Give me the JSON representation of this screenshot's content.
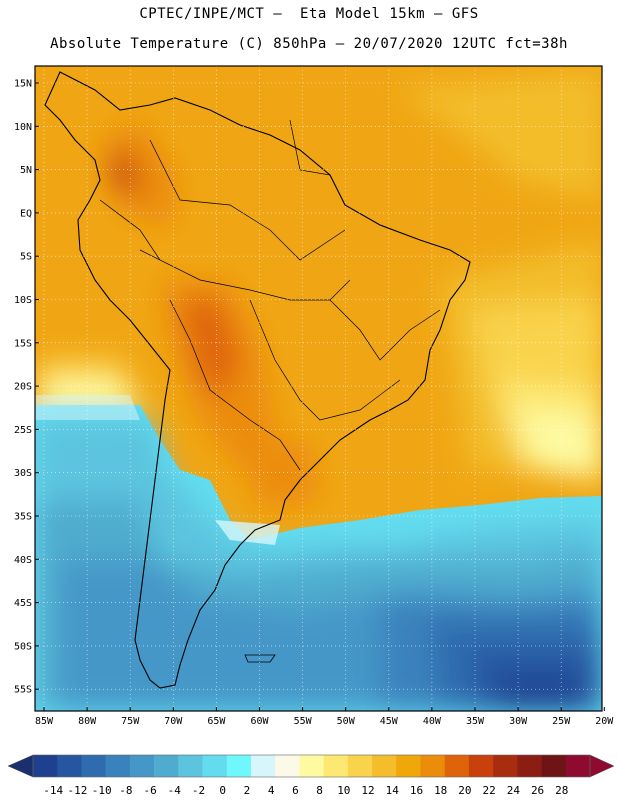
{
  "title_line1": "CPTEC/INPE/MCT –  Eta Model 15km – GFS",
  "title_line2": "Absolute Temperature (C) 850hPa – 20/07/2020 12UTC fct=38h",
  "lat_labels": [
    "15N",
    "10N",
    "5N",
    "EQ",
    "5S",
    "10S",
    "15S",
    "20S",
    "25S",
    "30S",
    "35S",
    "40S",
    "45S",
    "50S",
    "55S"
  ],
  "lon_labels": [
    "85W",
    "80W",
    "75W",
    "70W",
    "65W",
    "60W",
    "55W",
    "50W",
    "45W",
    "40W",
    "35W",
    "30W",
    "25W",
    "20W"
  ],
  "colorbar": {
    "labels": [
      "-14",
      "-12",
      "-10",
      "-8",
      "-6",
      "-4",
      "-2",
      "0",
      "2",
      "4",
      "6",
      "8",
      "10",
      "12",
      "14",
      "16",
      "18",
      "20",
      "22",
      "24",
      "26",
      "28"
    ],
    "colors": [
      "#1f3f8f",
      "#2756a0",
      "#2f6caf",
      "#3a82bd",
      "#4597c7",
      "#4faccf",
      "#5cc4de",
      "#63dcef",
      "#6ef8fc",
      "#d6f6fb",
      "#fdf9e8",
      "#fdfaa2",
      "#fde872",
      "#f9d34c",
      "#f3bd2b",
      "#efa70a",
      "#ec8c0b",
      "#df630b",
      "#c8400c",
      "#a82c0e",
      "#8b1d12",
      "#6f1416",
      "#8e0a2e"
    ],
    "under_color": "#1a2f6e",
    "over_color": "#8e0a2e"
  }
}
